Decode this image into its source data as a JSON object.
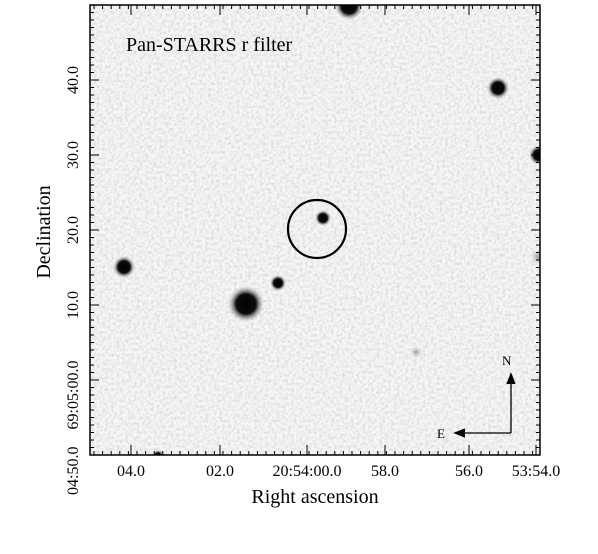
{
  "image": {
    "caption": "Pan-STARRS r filter",
    "x_axis_label": "Right ascension",
    "y_axis_label": "Declination",
    "x_ticks": [
      "04.0",
      "02.0",
      "20:54:00.0",
      "58.0",
      "56.0",
      "53:54.0"
    ],
    "y_ticks": [
      "04:50.0",
      "69:05:00.0",
      "10.0",
      "20.0",
      "30.0",
      "40.0"
    ],
    "compass": {
      "north": "N",
      "east": "E"
    },
    "colors": {
      "background": "#f4f4f4",
      "star": "#000000",
      "frame": "#000000"
    },
    "sources": [
      "bright star bottom-left",
      "star left edge",
      "small star near bright star",
      "target star in circle",
      "star top edge",
      "star top-right",
      "star right edge",
      "faint smudge"
    ]
  }
}
